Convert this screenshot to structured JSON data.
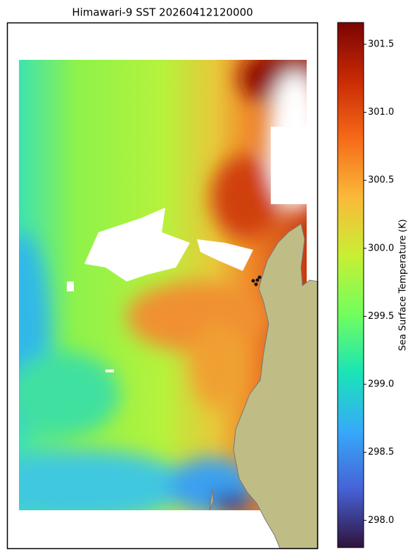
{
  "title": "Himawari-9 SST 20260412120000",
  "colorbar": {
    "label": "Sea Surface Temperature (K)",
    "colormap": "turbo",
    "colors": [
      "#30123b",
      "#4662d7",
      "#36aaf9",
      "#1ae4b6",
      "#72fe5e",
      "#c8ef34",
      "#faba39",
      "#f66b19",
      "#ca2a04",
      "#7a0403"
    ],
    "lim": [
      297.8,
      301.66
    ],
    "ticks": [
      {
        "value": 298,
        "label": "298.0"
      },
      298.5,
      {
        "value": 299,
        "label": "299.0"
      },
      299.5,
      {
        "value": 300,
        "label": "300.0"
      },
      300.5,
      {
        "value": 301,
        "label": "301.0"
      },
      301.5
    ]
  }
}
